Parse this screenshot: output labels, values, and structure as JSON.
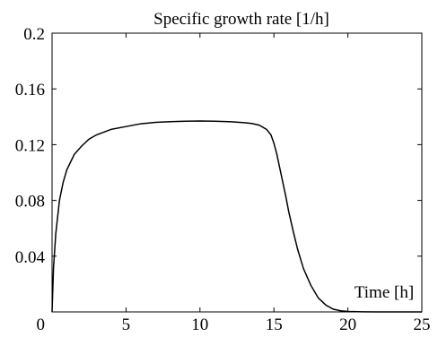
{
  "chart_data": {
    "type": "line",
    "title": "Specific growth rate [1/h]",
    "xlabel": "Time [h]",
    "ylabel": "",
    "xlim": [
      0,
      25
    ],
    "ylim": [
      0,
      0.2
    ],
    "xticks": [
      "0",
      "5",
      "10",
      "15",
      "20",
      "25"
    ],
    "yticks": [
      "0",
      "0.04",
      "0.08",
      "0.12",
      "0.16",
      "0.2"
    ],
    "grid": false,
    "legend": "none",
    "series": [
      {
        "color": "#000000",
        "x": [
          0,
          0.1,
          0.25,
          0.5,
          0.75,
          1,
          1.5,
          2,
          2.5,
          3,
          4,
          5,
          6,
          7,
          8,
          9,
          10,
          11,
          12,
          13,
          13.5,
          14,
          14.5,
          14.8,
          15,
          15.2,
          15.5,
          15.8,
          16,
          16.3,
          16.6,
          17,
          17.5,
          18,
          18.5,
          19,
          19.5,
          20,
          21,
          22,
          23,
          24,
          25
        ],
        "y": [
          0,
          0.032,
          0.056,
          0.08,
          0.093,
          0.102,
          0.113,
          0.119,
          0.124,
          0.127,
          0.131,
          0.133,
          0.135,
          0.136,
          0.1365,
          0.1368,
          0.137,
          0.1368,
          0.1365,
          0.1358,
          0.1352,
          0.134,
          0.131,
          0.127,
          0.121,
          0.113,
          0.098,
          0.083,
          0.072,
          0.058,
          0.045,
          0.031,
          0.019,
          0.01,
          0.005,
          0.002,
          0.0008,
          0.0003,
          0.0001,
          0,
          0,
          0,
          0
        ]
      }
    ]
  }
}
